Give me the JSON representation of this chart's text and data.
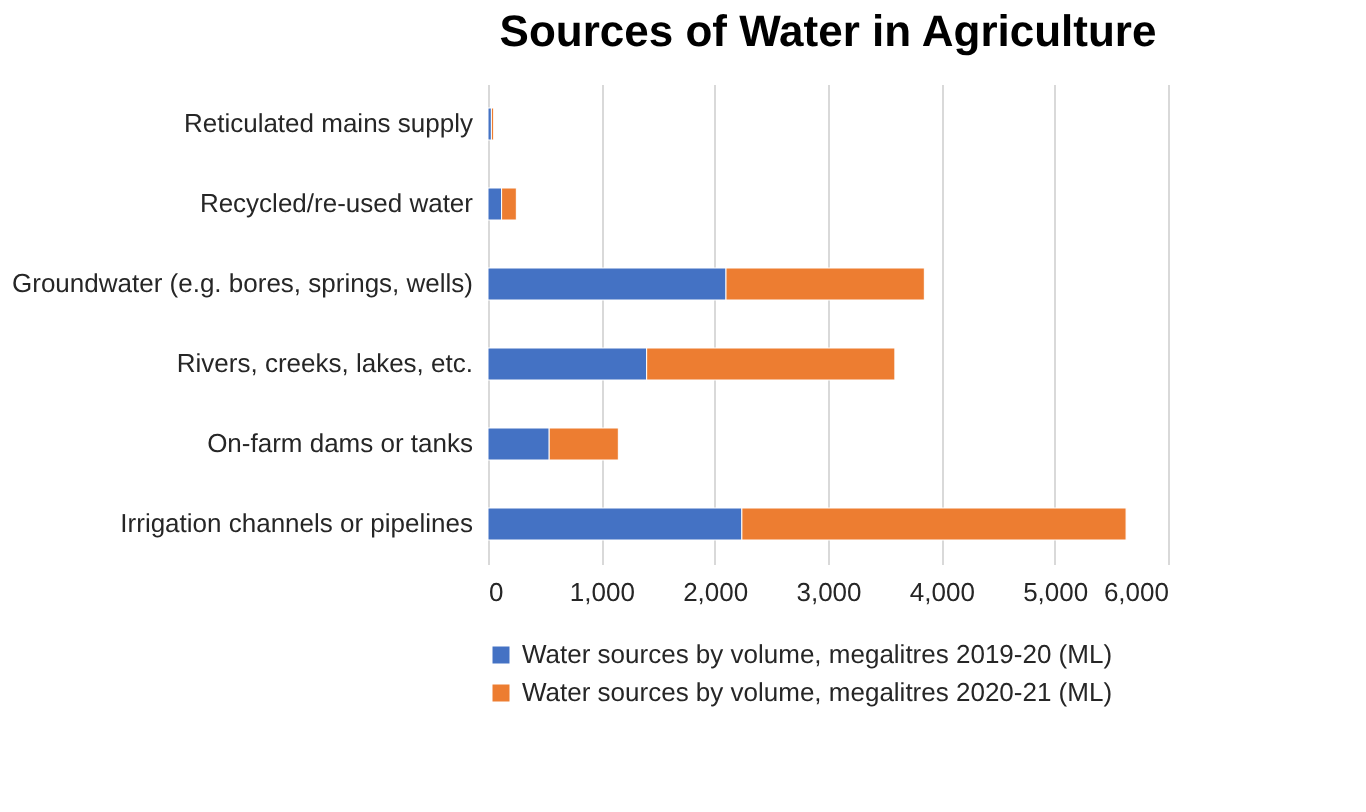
{
  "chart_data": {
    "type": "bar",
    "orientation": "horizontal",
    "stacked": true,
    "title": "Sources of Water in Agriculture",
    "categories": [
      "Reticulated mains supply",
      "Recycled/re-used water",
      "Groundwater (e.g. bores, springs, wells)",
      "Rivers, creeks, lakes, etc.",
      "On-farm dams or tanks",
      "Irrigation channels or pipelines"
    ],
    "series": [
      {
        "name": "Water sources by volume, megalitres 2019-20 (ML)",
        "color": "#4472c4",
        "values": [
          30,
          120,
          2100,
          1400,
          540,
          2240
        ]
      },
      {
        "name": "Water sources by volume, megalitres 2020-21 (ML)",
        "color": "#ed7d31",
        "values": [
          20,
          130,
          1750,
          2190,
          610,
          3390
        ]
      }
    ],
    "xlim": [
      0,
      6000
    ],
    "xticks": [
      {
        "value": 0,
        "label": "0"
      },
      {
        "value": 1000,
        "label": "1,000"
      },
      {
        "value": 2000,
        "label": "2,000"
      },
      {
        "value": 3000,
        "label": "3,000"
      },
      {
        "value": 4000,
        "label": "4,000"
      },
      {
        "value": 5000,
        "label": "5,000"
      },
      {
        "value": 6000,
        "label": "6,000"
      }
    ],
    "grid": "x",
    "legend": "bottom"
  }
}
